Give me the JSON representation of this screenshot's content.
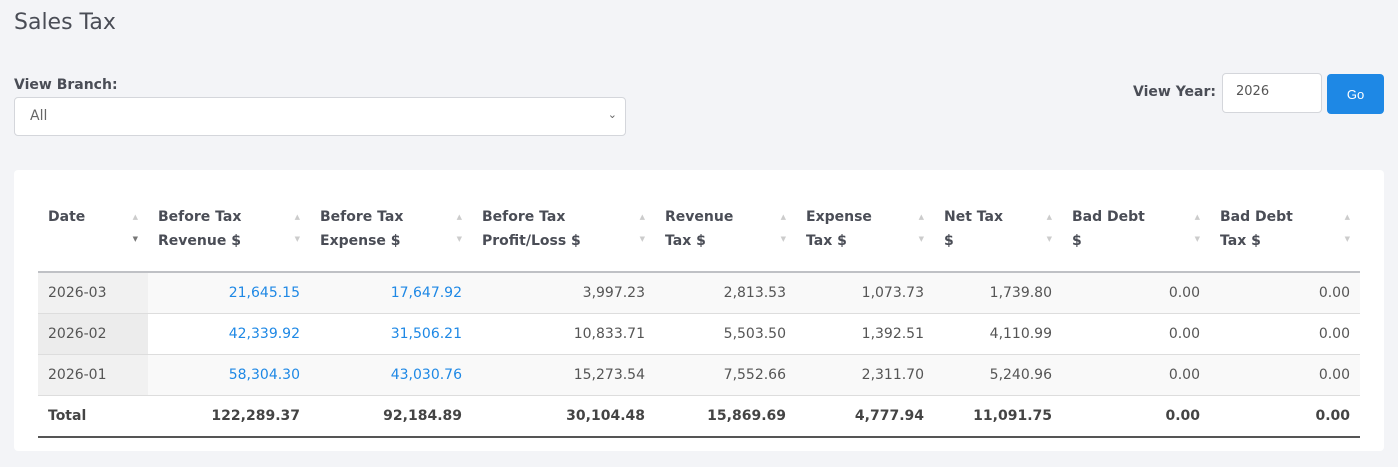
{
  "title": "Sales Tax",
  "branch": {
    "label": "View Branch:",
    "value": "All"
  },
  "year": {
    "label": "View Year:",
    "value": "2026",
    "go": "Go"
  },
  "table": {
    "headers": [
      [
        "Date",
        ""
      ],
      [
        "Before Tax",
        "Revenue $"
      ],
      [
        "Before Tax",
        "Expense $"
      ],
      [
        "Before Tax",
        "Profit/Loss $"
      ],
      [
        "Revenue",
        "Tax $"
      ],
      [
        "Expense",
        "Tax $"
      ],
      [
        "Net Tax",
        "$"
      ],
      [
        "Bad Debt",
        "$"
      ],
      [
        "Bad Debt",
        "Tax $"
      ]
    ],
    "sorted_column": "Date",
    "sort_direction": "descending",
    "rows": [
      [
        "2026-03",
        "21,645.15",
        "17,647.92",
        "3,997.23",
        "2,813.53",
        "1,073.73",
        "1,739.80",
        "0.00",
        "0.00"
      ],
      [
        "2026-02",
        "42,339.92",
        "31,506.21",
        "10,833.71",
        "5,503.50",
        "1,392.51",
        "4,110.99",
        "0.00",
        "0.00"
      ],
      [
        "2026-01",
        "58,304.30",
        "43,030.76",
        "15,273.54",
        "7,552.66",
        "2,311.70",
        "5,240.96",
        "0.00",
        "0.00"
      ]
    ],
    "total": [
      "Total",
      "122,289.37",
      "92,184.89",
      "30,104.48",
      "15,869.69",
      "4,777.94",
      "11,091.75",
      "0.00",
      "0.00"
    ]
  },
  "colors": {
    "accent": "#1e88e5"
  }
}
